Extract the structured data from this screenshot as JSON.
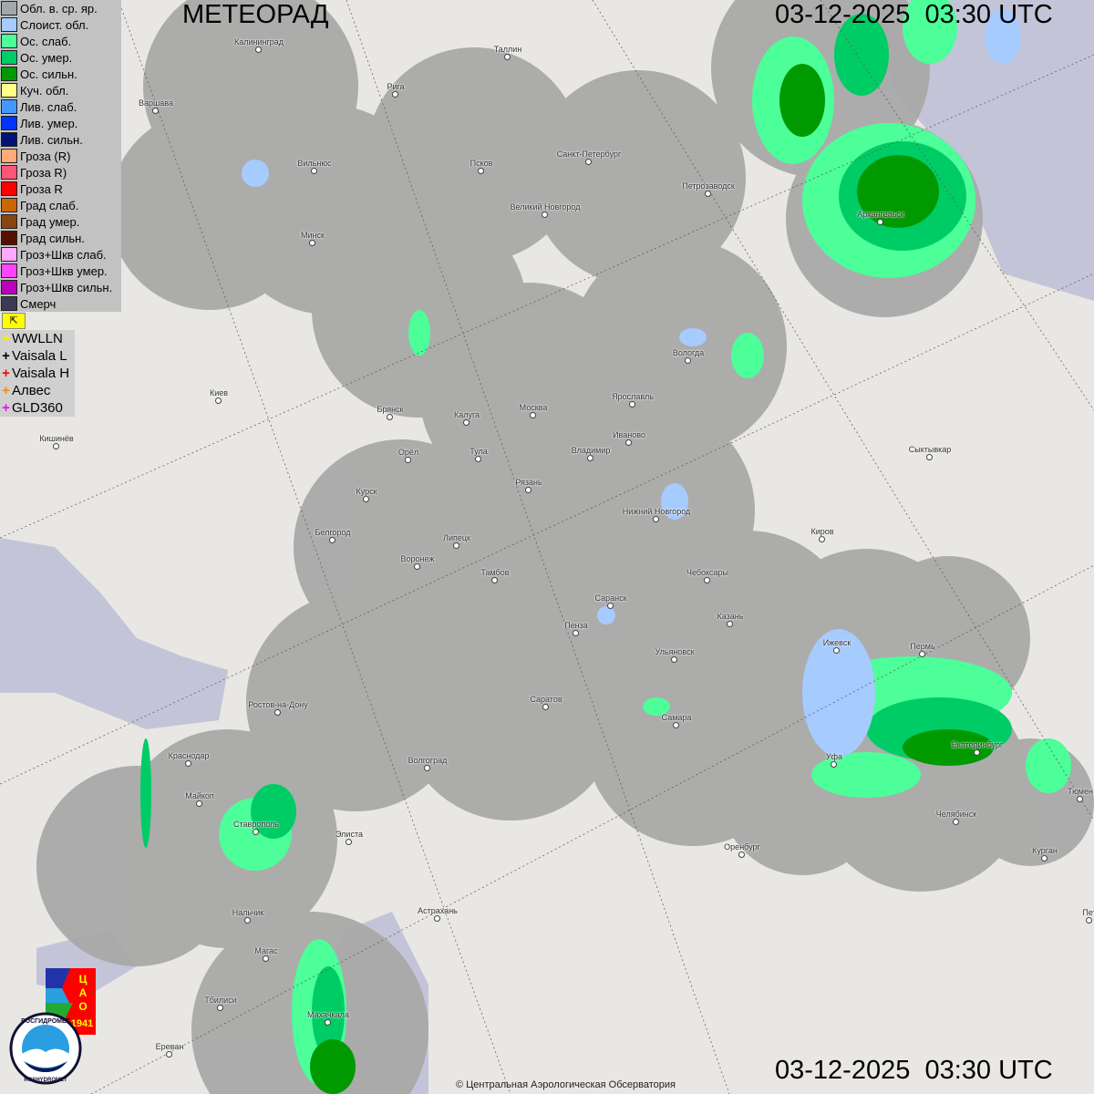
{
  "header": {
    "title": "МЕТЕОРАД",
    "datetime": "03-12-2025  03:30 UTC"
  },
  "footer": {
    "datetime": "03-12-2025  03:30 UTC",
    "copyright": "© Центральная Аэрологическая Обсерватория"
  },
  "legend": {
    "items": [
      {
        "label": "Обл. в. ср. яр.",
        "color": "#a0a8ac"
      },
      {
        "label": "Слоист. обл.",
        "color": "#a6cbff"
      },
      {
        "label": "Ос. слаб.",
        "color": "#4cff99"
      },
      {
        "label": "Ос. умер.",
        "color": "#00cc66"
      },
      {
        "label": "Ос. сильн.",
        "color": "#009a00"
      },
      {
        "label": "Куч. обл.",
        "color": "#ffff88"
      },
      {
        "label": "Лив. слаб.",
        "color": "#4499ff"
      },
      {
        "label": "Лив. умер.",
        "color": "#0033ff"
      },
      {
        "label": "Лив. сильн.",
        "color": "#001177"
      },
      {
        "label": "Гроза (R)",
        "color": "#ffaa77"
      },
      {
        "label": "Гроза R)",
        "color": "#ff5577"
      },
      {
        "label": "Гроза R",
        "color": "#ff0000"
      },
      {
        "label": "Град слаб.",
        "color": "#cc6600"
      },
      {
        "label": "Град умер.",
        "color": "#884411"
      },
      {
        "label": "Град сильн.",
        "color": "#551100"
      },
      {
        "label": "Гроз+Шкв слаб.",
        "color": "#ffaaff"
      },
      {
        "label": "Гроз+Шкв умер.",
        "color": "#ff44ff"
      },
      {
        "label": "Гроз+Шкв сильн.",
        "color": "#bb00bb"
      },
      {
        "label": "Смерч",
        "color": "#3a3a55"
      }
    ],
    "tool_icon": "flag-icon"
  },
  "lightning": [
    {
      "label": "WWLLN",
      "color": "#ffee00"
    },
    {
      "label": "Vaisala L",
      "color": "#000000"
    },
    {
      "label": "Vaisala H",
      "color": "#ff0000"
    },
    {
      "label": "Алвес",
      "color": "#ff8800"
    },
    {
      "label": "GLD360",
      "color": "#ff00ff"
    }
  ],
  "cities": [
    "Калининград",
    "Таллин",
    "Рига",
    "Варшава",
    "Вильнюс",
    "Псков",
    "Санкт-Петербург",
    "Петрозаводск",
    "Архангельск",
    "Великий Новгород",
    "Минск",
    "Вологда",
    "Москва",
    "Калуга",
    "Брянск",
    "Ярославль",
    "Иваново",
    "Киев",
    "Кишинёв",
    "Орёл",
    "Тула",
    "Владимир",
    "Рязань",
    "Сыктывкар",
    "Курск",
    "Нижний Новгород",
    "Белгород",
    "Липецк",
    "Киров",
    "Воронеж",
    "Тамбов",
    "Чебоксары",
    "Саранск",
    "Казань",
    "Пенза",
    "Ижевск",
    "Пермь",
    "Ульяновск",
    "Саратов",
    "Ростов-на-Дону",
    "Самара",
    "Екатеринбург",
    "Краснодар",
    "Уфа",
    "Волгоград",
    "Майкоп",
    "Тюмен",
    "Челябинск",
    "Ставрополь",
    "Элиста",
    "Оренбург",
    "Курган",
    "Астрахань",
    "Нальчик",
    "Пет",
    "Магас",
    "Махачкала",
    "Тбилиси",
    "Ереван"
  ],
  "logos": {
    "cao": "ЦАО 1941",
    "roshydromet": "РОСГИДРОМЕТ ROSHYDROMET"
  }
}
